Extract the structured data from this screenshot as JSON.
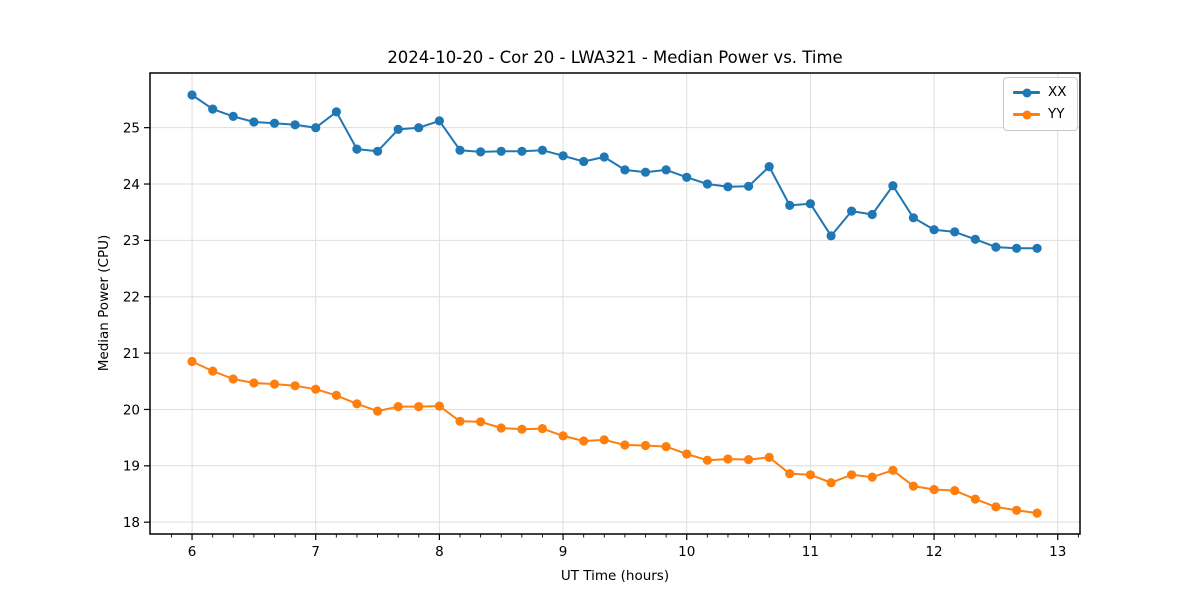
{
  "chart_data": {
    "type": "line",
    "title": "2024-10-20 - Cor 20 - LWA321 - Median Power vs. Time",
    "xlabel": "UT Time (hours)",
    "ylabel": "Median Power (CPU)",
    "xlim": [
      5.66,
      13.18
    ],
    "ylim": [
      17.79,
      25.97
    ],
    "xticks": [
      6,
      7,
      8,
      9,
      10,
      11,
      12,
      13
    ],
    "yticks": [
      18,
      19,
      20,
      21,
      22,
      23,
      24,
      25
    ],
    "x_minor_step": 0.1667,
    "grid": "major-only",
    "grid_color": "#dedede",
    "legend_position": "upper right",
    "x": [
      6.0,
      6.167,
      6.333,
      6.5,
      6.667,
      6.833,
      7.0,
      7.167,
      7.333,
      7.5,
      7.667,
      7.833,
      8.0,
      8.167,
      8.333,
      8.5,
      8.667,
      8.833,
      9.0,
      9.167,
      9.333,
      9.5,
      9.667,
      9.833,
      10.0,
      10.167,
      10.333,
      10.5,
      10.667,
      10.833,
      11.0,
      11.167,
      11.333,
      11.5,
      11.667,
      11.833,
      12.0,
      12.167,
      12.333,
      12.5,
      12.667,
      12.833
    ],
    "series": [
      {
        "name": "XX",
        "color": "#1f77b4",
        "values": [
          25.58,
          25.33,
          25.2,
          25.1,
          25.08,
          25.05,
          25.0,
          25.28,
          24.62,
          24.58,
          24.97,
          25.0,
          25.12,
          24.6,
          24.57,
          24.58,
          24.58,
          24.6,
          24.5,
          24.4,
          24.48,
          24.25,
          24.21,
          24.25,
          24.12,
          24.0,
          23.95,
          23.96,
          24.31,
          23.62,
          23.65,
          23.08,
          23.52,
          23.46,
          23.97,
          23.4,
          23.19,
          23.15,
          23.02,
          22.88,
          22.86,
          22.86
        ]
      },
      {
        "name": "YY",
        "color": "#ff7f0e",
        "values": [
          20.85,
          20.68,
          20.54,
          20.47,
          20.45,
          20.42,
          20.36,
          20.25,
          20.1,
          19.97,
          20.05,
          20.05,
          20.06,
          19.79,
          19.78,
          19.67,
          19.65,
          19.66,
          19.53,
          19.44,
          19.46,
          19.37,
          19.36,
          19.34,
          19.21,
          19.1,
          19.12,
          19.11,
          19.15,
          18.86,
          18.84,
          18.7,
          18.84,
          18.8,
          18.92,
          18.64,
          18.58,
          18.56,
          18.41,
          18.27,
          18.21,
          18.16
        ]
      }
    ]
  },
  "legend": {
    "items": [
      {
        "label": "XX",
        "color": "#1f77b4"
      },
      {
        "label": "YY",
        "color": "#ff7f0e"
      }
    ]
  }
}
